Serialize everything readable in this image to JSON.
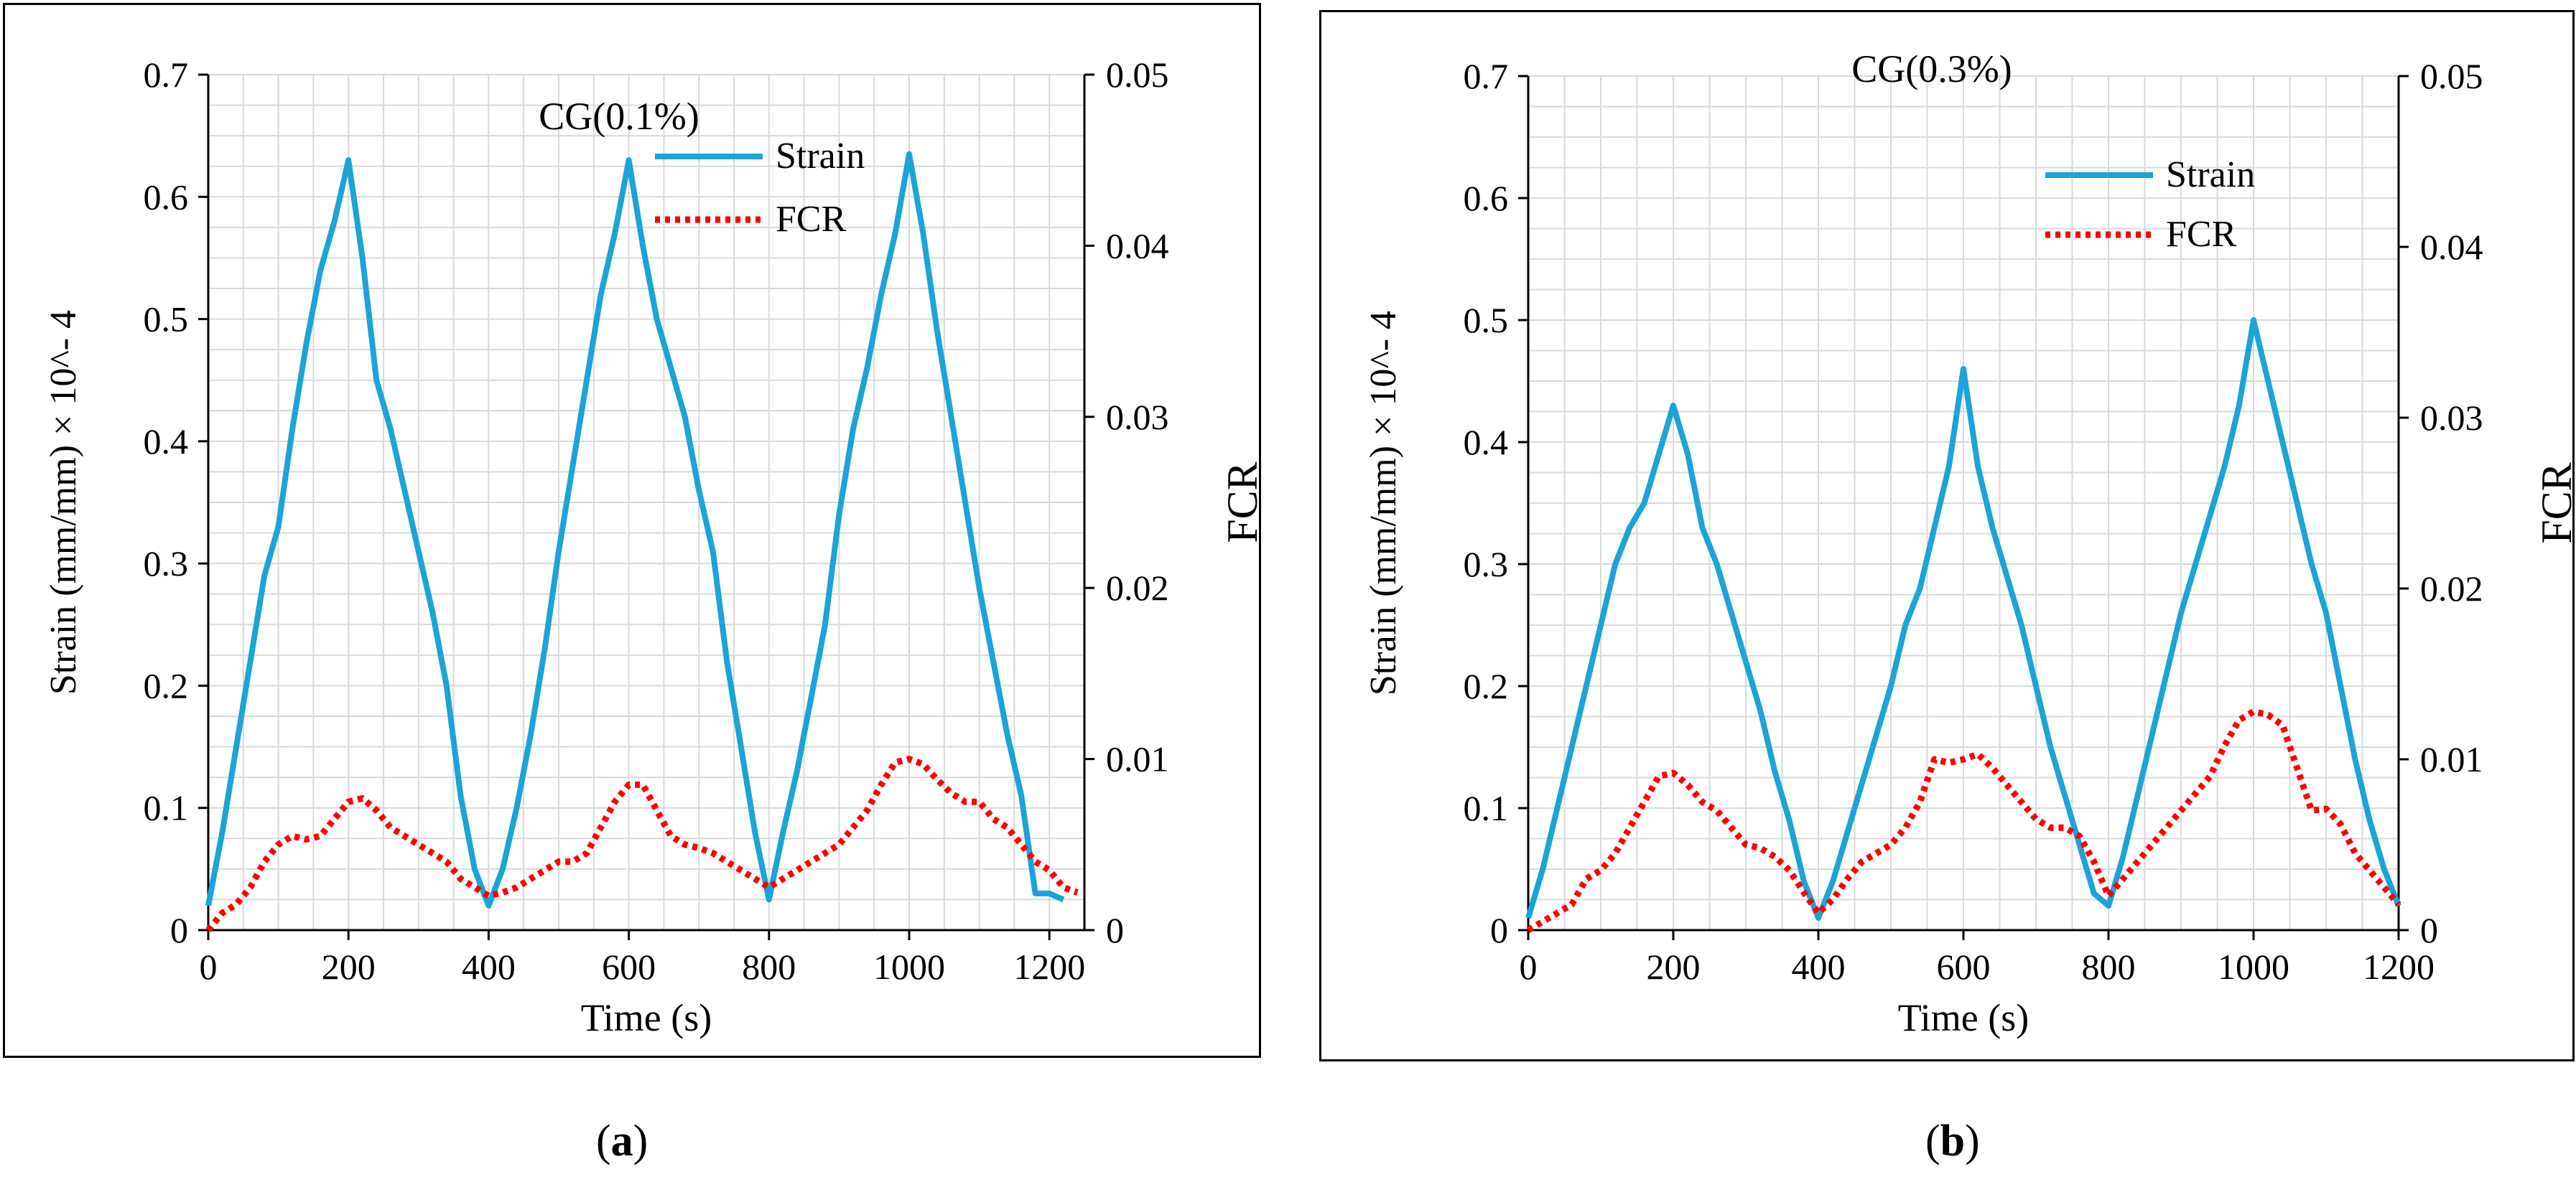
{
  "colors": {
    "strain": "#1ca3d8",
    "fcr": "#ff0000",
    "grid": "#d9d9d9",
    "axis": "#000000"
  },
  "panels": [
    {
      "caption_open": "(",
      "caption_letter": "a",
      "caption_close": ")",
      "chart_data": {
        "type": "line",
        "title": "CG(0.1%)",
        "xlabel": "Time (s)",
        "ylabel": "Strain (mm/mm) × 10^- 4",
        "y2label": "FCR",
        "xlim": [
          0,
          1250
        ],
        "ylim": [
          0,
          0.7
        ],
        "y2lim": [
          0,
          0.05
        ],
        "xticks": [
          "0",
          "200",
          "400",
          "600",
          "800",
          "1000",
          "1200"
        ],
        "yticks": [
          "0",
          "0.1",
          "0.2",
          "0.3",
          "0.4",
          "0.5",
          "0.6",
          "0.7"
        ],
        "y2ticks": [
          "0",
          "0.01",
          "0.02",
          "0.03",
          "0.04",
          "0.05"
        ],
        "legend": [
          "Strain",
          "FCR"
        ],
        "series": [
          {
            "name": "Strain",
            "axis": "left",
            "x": [
              0,
              20,
              40,
              60,
              80,
              100,
              120,
              140,
              160,
              180,
              200,
              220,
              240,
              260,
              280,
              300,
              320,
              340,
              360,
              380,
              400,
              420,
              440,
              460,
              480,
              500,
              520,
              540,
              560,
              580,
              600,
              620,
              640,
              660,
              680,
              700,
              720,
              740,
              760,
              780,
              800,
              820,
              840,
              860,
              880,
              900,
              920,
              940,
              960,
              980,
              1000,
              1020,
              1040,
              1060,
              1080,
              1100,
              1120,
              1140,
              1160,
              1180,
              1200,
              1220
            ],
            "values": [
              0.02,
              0.08,
              0.15,
              0.22,
              0.29,
              0.33,
              0.41,
              0.48,
              0.54,
              0.58,
              0.63,
              0.55,
              0.45,
              0.41,
              0.36,
              0.31,
              0.26,
              0.2,
              0.11,
              0.05,
              0.02,
              0.05,
              0.1,
              0.16,
              0.23,
              0.31,
              0.38,
              0.45,
              0.52,
              0.57,
              0.63,
              0.56,
              0.5,
              0.46,
              0.42,
              0.36,
              0.31,
              0.22,
              0.15,
              0.08,
              0.025,
              0.08,
              0.13,
              0.19,
              0.25,
              0.34,
              0.41,
              0.46,
              0.52,
              0.57,
              0.635,
              0.57,
              0.49,
              0.42,
              0.35,
              0.28,
              0.22,
              0.16,
              0.11,
              0.03,
              0.03,
              0.025
            ]
          },
          {
            "name": "FCR",
            "axis": "right",
            "x": [
              0,
              20,
              40,
              60,
              80,
              100,
              120,
              140,
              160,
              180,
              200,
              220,
              240,
              260,
              280,
              300,
              320,
              340,
              360,
              380,
              400,
              420,
              440,
              460,
              480,
              500,
              520,
              540,
              560,
              580,
              600,
              620,
              640,
              660,
              680,
              700,
              720,
              740,
              760,
              780,
              800,
              820,
              840,
              860,
              880,
              900,
              920,
              940,
              960,
              980,
              1000,
              1020,
              1040,
              1060,
              1080,
              1100,
              1120,
              1140,
              1160,
              1180,
              1200,
              1220,
              1240
            ],
            "values": [
              0.0,
              0.001,
              0.0015,
              0.0025,
              0.004,
              0.005,
              0.0055,
              0.0053,
              0.0055,
              0.0065,
              0.0075,
              0.0077,
              0.007,
              0.006,
              0.0055,
              0.005,
              0.0045,
              0.004,
              0.003,
              0.0025,
              0.002,
              0.0022,
              0.0025,
              0.003,
              0.0035,
              0.004,
              0.004,
              0.0045,
              0.006,
              0.0075,
              0.0085,
              0.0085,
              0.007,
              0.0055,
              0.005,
              0.0048,
              0.0045,
              0.004,
              0.0035,
              0.003,
              0.0025,
              0.003,
              0.0035,
              0.004,
              0.0045,
              0.005,
              0.006,
              0.007,
              0.0085,
              0.0098,
              0.01,
              0.0097,
              0.0088,
              0.008,
              0.0075,
              0.0075,
              0.0065,
              0.006,
              0.005,
              0.004,
              0.0035,
              0.0025,
              0.0022
            ]
          }
        ]
      }
    },
    {
      "caption_open": "(",
      "caption_letter": "b",
      "caption_close": ")",
      "chart_data": {
        "type": "line",
        "title": "CG(0.3%)",
        "xlabel": "Time (s)",
        "ylabel": "Strain (mm/mm) × 10^- 4",
        "y2label": "FCR",
        "xlim": [
          0,
          1200
        ],
        "ylim": [
          0,
          0.7
        ],
        "y2lim": [
          0,
          0.05
        ],
        "xticks": [
          "0",
          "200",
          "400",
          "600",
          "800",
          "1000",
          "1200"
        ],
        "yticks": [
          "0",
          "0.1",
          "0.2",
          "0.3",
          "0.4",
          "0.5",
          "0.6",
          "0.7"
        ],
        "y2ticks": [
          "0",
          "0.01",
          "0.02",
          "0.03",
          "0.04",
          "0.05"
        ],
        "legend": [
          "Strain",
          "FCR"
        ],
        "series": [
          {
            "name": "Strain",
            "axis": "left",
            "x": [
              0,
              20,
              40,
              60,
              80,
              100,
              120,
              140,
              160,
              180,
              200,
              220,
              240,
              260,
              280,
              300,
              320,
              340,
              360,
              380,
              400,
              420,
              440,
              460,
              480,
              500,
              520,
              540,
              560,
              580,
              600,
              620,
              640,
              660,
              680,
              700,
              720,
              740,
              760,
              780,
              800,
              820,
              840,
              860,
              880,
              900,
              920,
              940,
              960,
              980,
              1000,
              1020,
              1040,
              1060,
              1080,
              1100,
              1120,
              1140,
              1160,
              1180,
              1200
            ],
            "values": [
              0.01,
              0.05,
              0.1,
              0.15,
              0.2,
              0.25,
              0.3,
              0.33,
              0.35,
              0.39,
              0.43,
              0.39,
              0.33,
              0.3,
              0.26,
              0.22,
              0.18,
              0.13,
              0.09,
              0.04,
              0.01,
              0.04,
              0.08,
              0.12,
              0.16,
              0.2,
              0.25,
              0.28,
              0.33,
              0.38,
              0.46,
              0.38,
              0.33,
              0.29,
              0.25,
              0.2,
              0.15,
              0.11,
              0.07,
              0.03,
              0.02,
              0.06,
              0.11,
              0.16,
              0.21,
              0.26,
              0.3,
              0.34,
              0.38,
              0.43,
              0.5,
              0.45,
              0.4,
              0.35,
              0.3,
              0.26,
              0.2,
              0.14,
              0.09,
              0.05,
              0.02
            ]
          },
          {
            "name": "FCR",
            "axis": "right",
            "x": [
              0,
              20,
              40,
              60,
              80,
              100,
              120,
              140,
              160,
              180,
              200,
              220,
              240,
              260,
              280,
              300,
              320,
              340,
              360,
              380,
              400,
              420,
              440,
              460,
              480,
              500,
              520,
              540,
              560,
              580,
              600,
              620,
              640,
              660,
              680,
              700,
              720,
              740,
              760,
              780,
              800,
              820,
              840,
              860,
              880,
              900,
              920,
              940,
              960,
              980,
              1000,
              1020,
              1040,
              1060,
              1080,
              1100,
              1120,
              1140,
              1160,
              1180,
              1200
            ],
            "values": [
              0.0,
              0.0005,
              0.001,
              0.0015,
              0.003,
              0.0035,
              0.0045,
              0.006,
              0.0075,
              0.009,
              0.0092,
              0.0085,
              0.0075,
              0.007,
              0.006,
              0.005,
              0.0048,
              0.0043,
              0.0035,
              0.0022,
              0.001,
              0.0018,
              0.003,
              0.004,
              0.0045,
              0.005,
              0.006,
              0.0075,
              0.01,
              0.0098,
              0.01,
              0.0103,
              0.0095,
              0.0085,
              0.0075,
              0.0065,
              0.006,
              0.006,
              0.0055,
              0.004,
              0.002,
              0.003,
              0.004,
              0.005,
              0.006,
              0.007,
              0.008,
              0.009,
              0.0108,
              0.0123,
              0.0128,
              0.0126,
              0.012,
              0.0095,
              0.007,
              0.0071,
              0.0062,
              0.0045,
              0.0035,
              0.0025,
              0.0015
            ]
          }
        ]
      }
    }
  ]
}
